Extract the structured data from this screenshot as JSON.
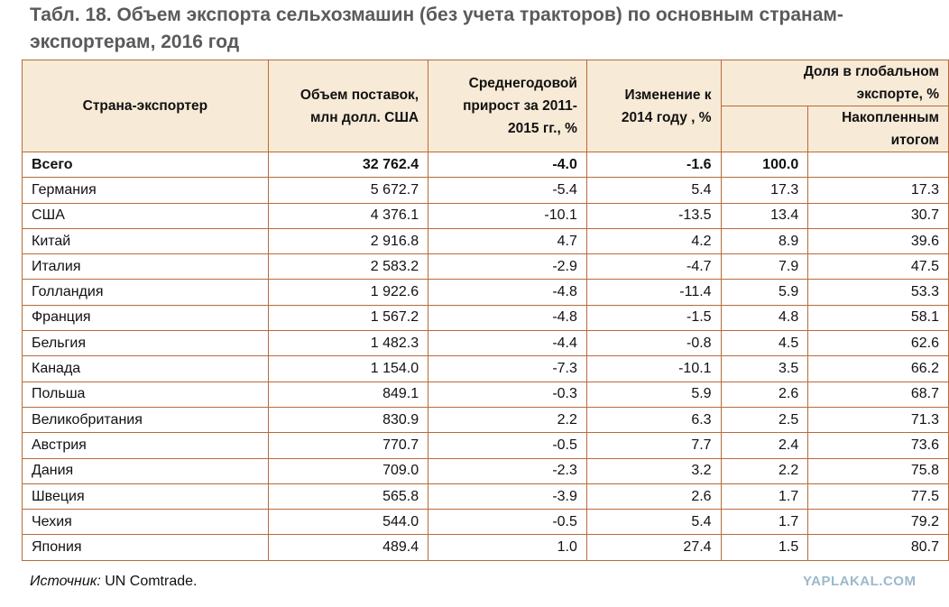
{
  "title": "Табл. 18. Объем экспорта сельхозмашин (без учета тракторов) по основным странам-экспортерам, 2016 год",
  "headers": {
    "country": "Страна-экспортер",
    "volume": "Объем поставок, млн долл. США",
    "growth": "Среднегодовой прирост за 2011-2015 гг., %",
    "change": "Изменение к 2014 году , %",
    "share": "Доля в глобальном экспорте, %",
    "cumulative": "Накопленным итогом"
  },
  "total": {
    "country": "Всего",
    "volume": "32 762.4",
    "growth": "-4.0",
    "change": "-1.6",
    "share": "100.0",
    "cumulative": ""
  },
  "rows": [
    {
      "country": "Германия",
      "volume": "5 672.7",
      "growth": "-5.4",
      "change": "5.4",
      "share": "17.3",
      "cumulative": "17.3"
    },
    {
      "country": "США",
      "volume": "4 376.1",
      "growth": "-10.1",
      "change": "-13.5",
      "share": "13.4",
      "cumulative": "30.7"
    },
    {
      "country": "Китай",
      "volume": "2 916.8",
      "growth": "4.7",
      "change": "4.2",
      "share": "8.9",
      "cumulative": "39.6"
    },
    {
      "country": "Италия",
      "volume": "2 583.2",
      "growth": "-2.9",
      "change": "-4.7",
      "share": "7.9",
      "cumulative": "47.5"
    },
    {
      "country": "Голландия",
      "volume": "1 922.6",
      "growth": "-4.8",
      "change": "-11.4",
      "share": "5.9",
      "cumulative": "53.3"
    },
    {
      "country": "Франция",
      "volume": "1 567.2",
      "growth": "-4.8",
      "change": "-1.5",
      "share": "4.8",
      "cumulative": "58.1"
    },
    {
      "country": "Бельгия",
      "volume": "1 482.3",
      "growth": "-4.4",
      "change": "-0.8",
      "share": "4.5",
      "cumulative": "62.6"
    },
    {
      "country": "Канада",
      "volume": "1 154.0",
      "growth": "-7.3",
      "change": "-10.1",
      "share": "3.5",
      "cumulative": "66.2"
    },
    {
      "country": "Польша",
      "volume": "849.1",
      "growth": "-0.3",
      "change": "5.9",
      "share": "2.6",
      "cumulative": "68.7"
    },
    {
      "country": "Великобритания",
      "volume": "830.9",
      "growth": "2.2",
      "change": "6.3",
      "share": "2.5",
      "cumulative": "71.3"
    },
    {
      "country": "Австрия",
      "volume": "770.7",
      "growth": "-0.5",
      "change": "7.7",
      "share": "2.4",
      "cumulative": "73.6"
    },
    {
      "country": "Дания",
      "volume": "709.0",
      "growth": "-2.3",
      "change": "3.2",
      "share": "2.2",
      "cumulative": "75.8"
    },
    {
      "country": "Швеция",
      "volume": "565.8",
      "growth": "-3.9",
      "change": "2.6",
      "share": "1.7",
      "cumulative": "77.5"
    },
    {
      "country": "Чехия",
      "volume": "544.0",
      "growth": "-0.5",
      "change": "5.4",
      "share": "1.7",
      "cumulative": "79.2"
    },
    {
      "country": "Япония",
      "volume": "489.4",
      "growth": "1.0",
      "change": "27.4",
      "share": "1.5",
      "cumulative": "80.7"
    }
  ],
  "source_label": "Источник:",
  "source_value": " UN Comtrade.",
  "watermark": "YAPLAKAL.COM"
}
